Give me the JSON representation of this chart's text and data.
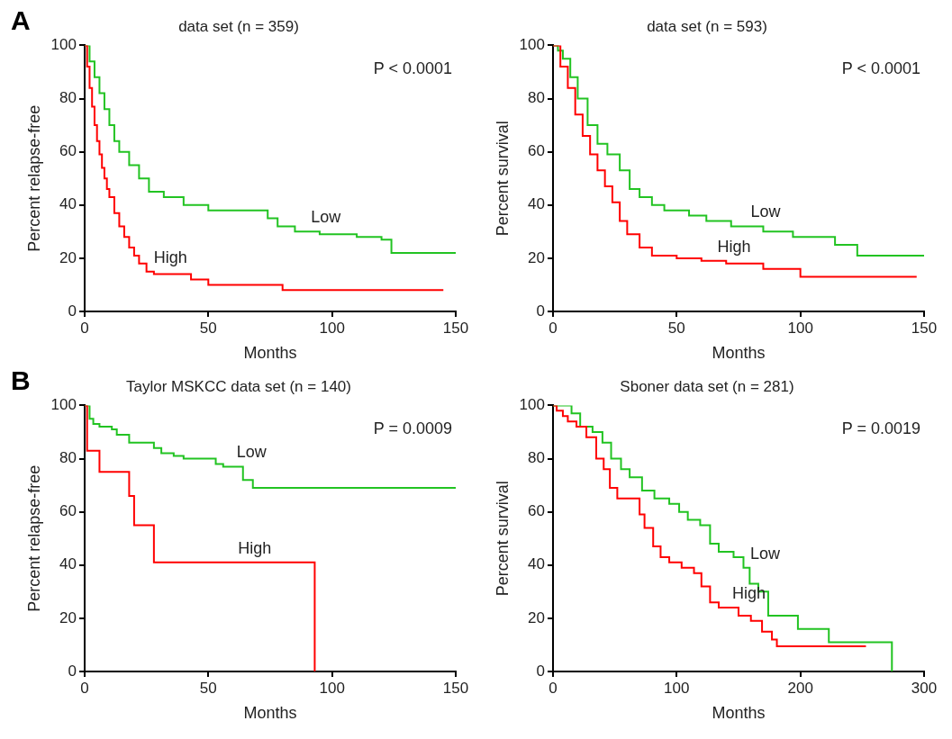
{
  "chart_data": [
    {
      "type": "step",
      "title": "data set (n = 359)",
      "xlabel": "Months",
      "ylabel": "Percent relapse-free",
      "xlim": [
        0,
        150
      ],
      "xticks": [
        0,
        50,
        100,
        150
      ],
      "ylim": [
        0,
        100
      ],
      "yticks": [
        0,
        20,
        40,
        60,
        80,
        100
      ],
      "annotations": [
        "P < 0.0001",
        "A"
      ],
      "series": [
        {
          "name": "High",
          "color": "#ff0000",
          "x": [
            0,
            1,
            2,
            3,
            4,
            5,
            6,
            7,
            8,
            9,
            10,
            12,
            14,
            16,
            18,
            20,
            22,
            25,
            28,
            43,
            50,
            80,
            145
          ],
          "values": [
            100,
            92,
            84,
            77,
            70,
            64,
            59,
            54,
            50,
            46,
            43,
            37,
            32,
            28,
            24,
            21,
            18,
            15,
            14,
            12,
            10,
            8,
            8
          ]
        },
        {
          "name": "Low",
          "color": "#22c322",
          "x": [
            0,
            2,
            4,
            6,
            8,
            10,
            12,
            14,
            18,
            22,
            26,
            32,
            40,
            50,
            70,
            74,
            78,
            85,
            95,
            110,
            120,
            124,
            150
          ],
          "values": [
            100,
            94,
            88,
            82,
            76,
            70,
            64,
            60,
            55,
            50,
            45,
            43,
            40,
            38,
            38,
            35,
            32,
            30,
            29,
            28,
            27,
            22,
            22
          ]
        }
      ]
    },
    {
      "type": "step",
      "title": "data set (n = 593)",
      "xlabel": "Months",
      "ylabel": "Percent survival",
      "xlim": [
        0,
        150
      ],
      "xticks": [
        0,
        50,
        100,
        150
      ],
      "ylim": [
        0,
        100
      ],
      "yticks": [
        0,
        20,
        40,
        60,
        80,
        100
      ],
      "annotations": [
        "P < 0.0001"
      ],
      "series": [
        {
          "name": "High",
          "color": "#ff0000",
          "x": [
            0,
            3,
            6,
            9,
            12,
            15,
            18,
            21,
            24,
            27,
            30,
            35,
            40,
            50,
            60,
            70,
            85,
            100,
            147
          ],
          "values": [
            100,
            92,
            84,
            74,
            66,
            59,
            53,
            47,
            41,
            34,
            29,
            24,
            21,
            20,
            19,
            18,
            16,
            13,
            13
          ]
        },
        {
          "name": "Low",
          "color": "#22c322",
          "x": [
            0,
            2,
            4,
            7,
            10,
            14,
            18,
            22,
            27,
            31,
            35,
            40,
            45,
            55,
            62,
            72,
            85,
            97,
            114,
            123,
            150
          ],
          "values": [
            100,
            98,
            95,
            88,
            80,
            70,
            63,
            59,
            53,
            46,
            43,
            40,
            38,
            36,
            34,
            32,
            30,
            28,
            25,
            21,
            21
          ]
        }
      ]
    },
    {
      "type": "step",
      "title": "Taylor MSKCC data set (n = 140)",
      "xlabel": "Months",
      "ylabel": "Percent relapse-free",
      "xlim": [
        0,
        150
      ],
      "xticks": [
        0,
        50,
        100,
        150
      ],
      "ylim": [
        0,
        100
      ],
      "yticks": [
        0,
        20,
        40,
        60,
        80,
        100
      ],
      "annotations": [
        "P = 0.0009",
        "B"
      ],
      "series": [
        {
          "name": "High",
          "color": "#ff0000",
          "x": [
            0,
            1,
            6,
            18,
            20,
            28,
            93
          ],
          "values": [
            100,
            83,
            75,
            66,
            55,
            41,
            0
          ]
        },
        {
          "name": "Low",
          "color": "#22c322",
          "x": [
            0,
            2,
            3.5,
            6,
            11,
            13,
            18,
            28,
            31,
            36,
            40,
            53,
            56,
            64,
            68,
            150
          ],
          "values": [
            100,
            95,
            93,
            92,
            91,
            89,
            86,
            84,
            82,
            81,
            80,
            78,
            77,
            72,
            69,
            69
          ]
        }
      ]
    },
    {
      "type": "step",
      "title": "Sboner data set (n = 281)",
      "xlabel": "Months",
      "ylabel": "Percent survival",
      "xlim": [
        0,
        300
      ],
      "xticks": [
        0,
        100,
        200,
        300
      ],
      "ylim": [
        0,
        100
      ],
      "yticks": [
        0,
        20,
        40,
        60,
        80,
        100
      ],
      "annotations": [
        "P = 0.0019"
      ],
      "series": [
        {
          "name": "High",
          "color": "#ff0000",
          "x": [
            0,
            3,
            8,
            12,
            19,
            27,
            35,
            41,
            46,
            52,
            70,
            74,
            81,
            87,
            94,
            104,
            114,
            120,
            127,
            134,
            150,
            160,
            169,
            177,
            181,
            253
          ],
          "values": [
            100,
            98,
            96,
            94,
            92,
            88,
            80,
            76,
            69,
            65,
            59,
            54,
            47,
            43,
            41,
            39,
            37,
            32,
            26,
            24,
            21,
            19,
            15,
            12,
            9.5,
            9.5
          ]
        },
        {
          "name": "Low",
          "color": "#22c322",
          "x": [
            0,
            6,
            15,
            22,
            32,
            40,
            47,
            55,
            62,
            72,
            82,
            94,
            102,
            109,
            119,
            127,
            134,
            146,
            154,
            159,
            166,
            174,
            198,
            223,
            274
          ],
          "values": [
            100,
            100,
            97,
            92,
            90,
            86,
            80,
            76,
            73,
            68,
            65,
            63,
            60,
            57,
            55,
            48,
            45,
            43,
            39,
            33,
            30,
            21,
            16,
            11,
            0
          ]
        }
      ]
    }
  ]
}
